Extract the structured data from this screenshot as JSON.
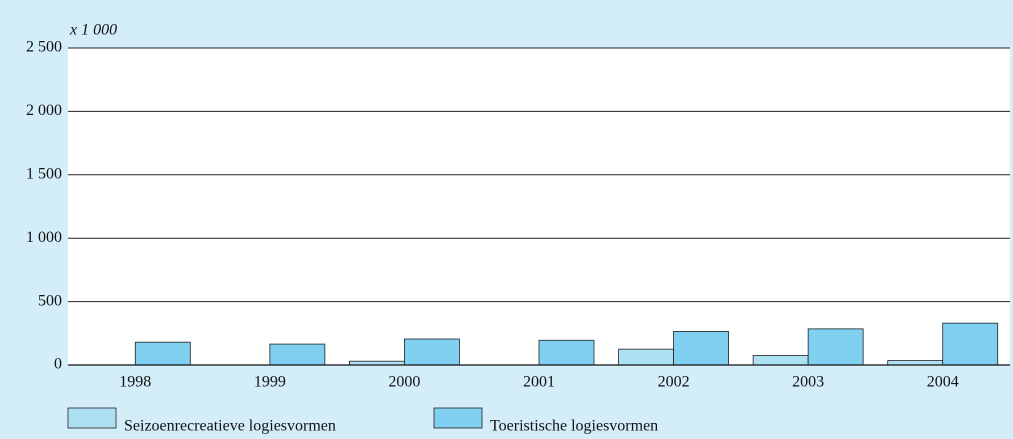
{
  "chart_data": {
    "type": "bar",
    "y_axis_label": "x 1 000",
    "categories": [
      "1998",
      "1999",
      "2000",
      "2001",
      "2002",
      "2003",
      "2004"
    ],
    "series": [
      {
        "name": "Seizoenrecreatieve logiesvormen",
        "color": "#aee0f4",
        "values": [
          0,
          0,
          30,
          0,
          125,
          75,
          35
        ]
      },
      {
        "name": "Toeristische logiesvormen",
        "color": "#7fd0f1",
        "values": [
          180,
          165,
          205,
          195,
          265,
          285,
          330
        ]
      }
    ],
    "ylim": [
      0,
      2500
    ],
    "yticks": [
      0,
      500,
      {
        "value": 1000,
        "label": "1 000"
      },
      {
        "value": 1500,
        "label": "1 500"
      },
      {
        "value": 2000,
        "label": "2 000"
      },
      {
        "value": 2500,
        "label": "2 500"
      }
    ],
    "grid": true
  }
}
